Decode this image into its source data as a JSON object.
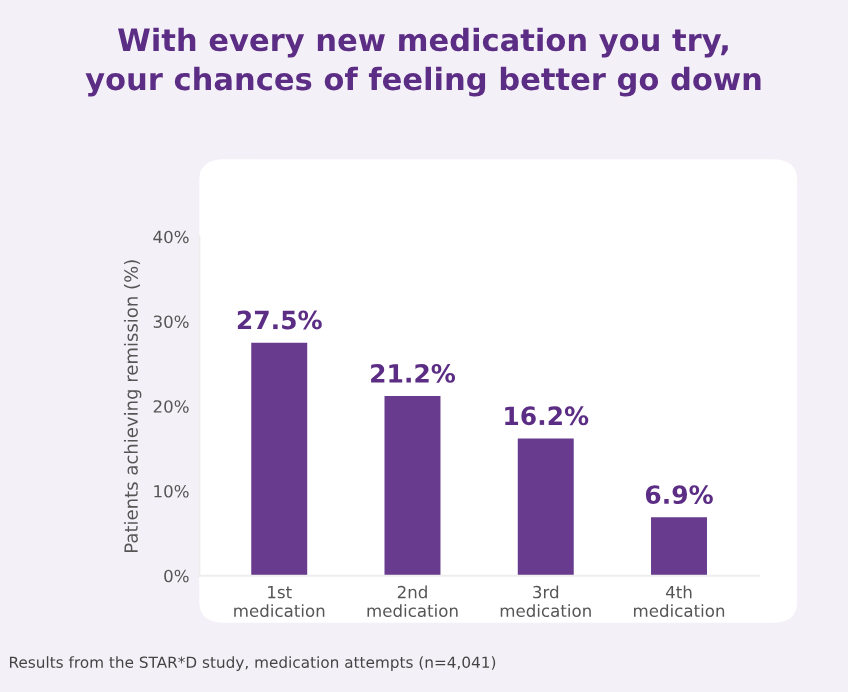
{
  "chart_data": {
    "type": "bar",
    "title": "With every new medication you try,\nyour chances of feeling better go down",
    "ylabel": "Patients achieving remission (%)",
    "categories": [
      "1st\nmedication",
      "2nd\nmedication",
      "3rd\nmedication",
      "4th\nmedication"
    ],
    "values": [
      27.5,
      21.2,
      16.2,
      6.9
    ],
    "color": "#683b8e",
    "value_labels": [
      "27.5%",
      "21.2%",
      "16.2%",
      "6.9%"
    ],
    "ylim": [
      0,
      40
    ],
    "yticks": [
      {
        "value": 0,
        "label": "0%"
      },
      {
        "value": 10,
        "label": "10%"
      },
      {
        "value": 20,
        "label": "20%"
      },
      {
        "value": 30,
        "label": "30%"
      },
      {
        "value": 40,
        "label": "40%"
      }
    ],
    "grid": false,
    "legend": false,
    "annotations": [
      "Results from the STAR*D study, medication attempts (n=4,041)"
    ]
  }
}
